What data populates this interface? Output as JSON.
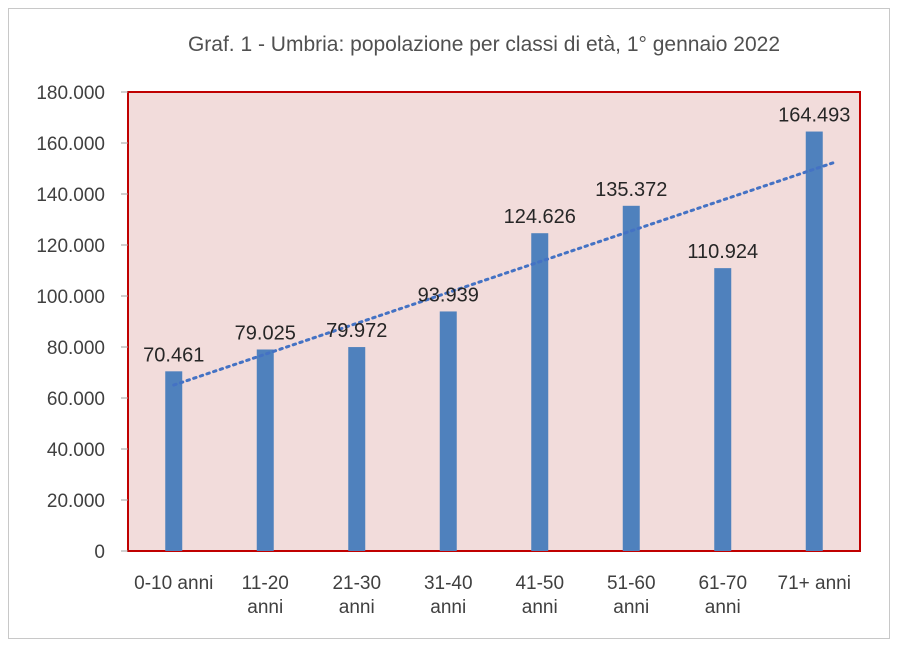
{
  "chart_data": {
    "type": "bar",
    "title": "Graf. 1 - Umbria: popolazione per classi di età, 1° gennaio 2022",
    "xlabel": "",
    "ylabel": "",
    "categories": [
      [
        "0-10 anni"
      ],
      [
        "11-20",
        "anni"
      ],
      [
        "21-30",
        "anni"
      ],
      [
        "31-40",
        "anni"
      ],
      [
        "41-50",
        "anni"
      ],
      [
        "51-60",
        "anni"
      ],
      [
        "61-70",
        "anni"
      ],
      [
        "71+ anni"
      ]
    ],
    "values": [
      70461,
      79025,
      79972,
      93939,
      124626,
      135372,
      110924,
      164493
    ],
    "data_labels": [
      "70.461",
      "79.025",
      "79.972",
      "93.939",
      "124.626",
      "135.372",
      "110.924",
      "164.493"
    ],
    "ylim": [
      0,
      180000
    ],
    "yticks": [
      0,
      20000,
      40000,
      60000,
      80000,
      100000,
      120000,
      140000,
      160000,
      180000
    ],
    "ytick_labels": [
      "0",
      "20.000",
      "40.000",
      "60.000",
      "80.000",
      "100.000",
      "120.000",
      "140.000",
      "160.000",
      "180.000"
    ],
    "trendline": "linear",
    "grid": false,
    "legend": "none",
    "colors": {
      "bar": "#4f81bd",
      "plot_background": "#f2dcdb",
      "plot_border": "#c00000",
      "trendline": "#4472c4"
    }
  }
}
